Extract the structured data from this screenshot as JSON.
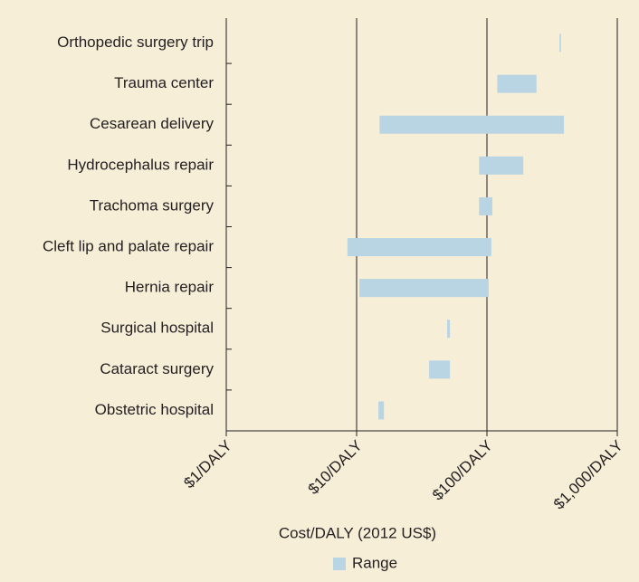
{
  "chart_data": {
    "type": "range-bar",
    "categories": [
      "Orthopedic surgery trip",
      "Trauma center",
      "Cesarean delivery",
      "Hydrocephalus repair",
      "Trachoma surgery",
      "Cleft lip and palate repair",
      "Hernia repair",
      "Surgical hospital",
      "Cataract surgery",
      "Obstetric hospital"
    ],
    "series": [
      {
        "name": "Range",
        "color": "#b9d5e3",
        "values": [
          [
            360,
            370
          ],
          [
            120,
            240
          ],
          [
            15,
            390
          ],
          [
            87,
            190
          ],
          [
            87,
            110
          ],
          [
            8.5,
            108
          ],
          [
            10.5,
            103
          ],
          [
            49.5,
            52
          ],
          [
            36,
            52
          ],
          [
            14.7,
            16.2
          ]
        ]
      }
    ],
    "x_label": "Cost/DALY (2012 US$)",
    "xscale": "log",
    "xlim": [
      1,
      1000
    ],
    "xticks": [
      {
        "value": 1,
        "label": "$1/DALY"
      },
      {
        "value": 10,
        "label": "$10/DALY"
      },
      {
        "value": 100,
        "label": "$100/DALY"
      },
      {
        "value": 1000,
        "label": "$1,000/DALY"
      }
    ],
    "grid": true,
    "legend": "bottom"
  }
}
